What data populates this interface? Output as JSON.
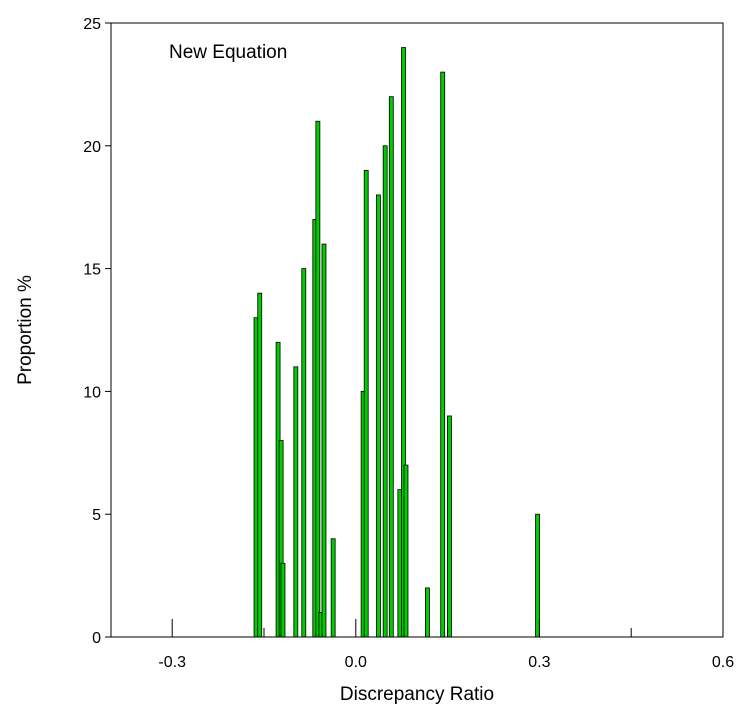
{
  "chart_data": {
    "type": "bar",
    "annotation": "New Equation",
    "xlabel": "Discrepancy Ratio",
    "ylabel": "Proportion %",
    "xlim": [
      -0.4,
      0.6
    ],
    "ylim": [
      0,
      25
    ],
    "xticks": [
      -0.3,
      0.0,
      0.3,
      0.6
    ],
    "xtick_labels": [
      "-0.3",
      "0.0",
      "0.3",
      "0.6"
    ],
    "xminor_ticks": [
      -0.15,
      0.15,
      0.45
    ],
    "yticks": [
      0,
      5,
      10,
      15,
      20,
      25
    ],
    "ytick_labels": [
      "0",
      "5",
      "10",
      "15",
      "20",
      "25"
    ],
    "grid": false,
    "bar_color": "#00cc00",
    "bar_edge_color": "#000000",
    "x": [
      -0.163,
      -0.157,
      -0.127,
      -0.122,
      -0.119,
      -0.098,
      -0.085,
      -0.067,
      -0.062,
      -0.057,
      -0.052,
      -0.037,
      0.012,
      0.017,
      0.037,
      0.048,
      0.058,
      0.072,
      0.078,
      0.082,
      0.117,
      0.142,
      0.153,
      0.297
    ],
    "values": [
      13,
      14,
      12,
      8,
      3,
      11,
      15,
      17,
      21,
      1,
      16,
      4,
      10,
      19,
      18,
      20,
      22,
      6,
      24,
      7,
      2,
      23,
      9,
      5
    ]
  }
}
